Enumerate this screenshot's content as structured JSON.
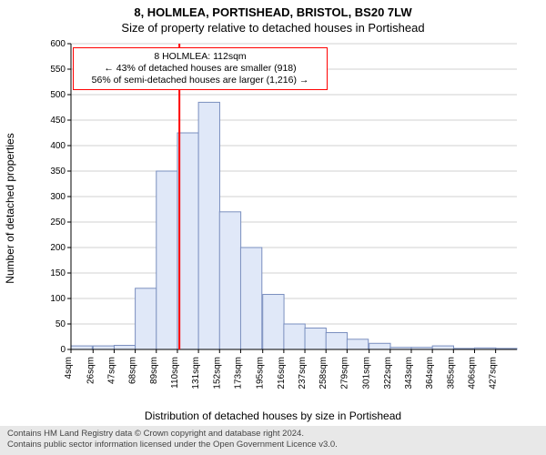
{
  "titles": {
    "super": "8, HOLMLEA, PORTISHEAD, BRISTOL, BS20 7LW",
    "sub": "Size of property relative to detached houses in Portishead",
    "xaxis": "Distribution of detached houses by size in Portishead",
    "yaxis": "Number of detached properties"
  },
  "footer": {
    "line1": "Contains HM Land Registry data © Crown copyright and database right 2024.",
    "line2": "Contains public sector information licensed under the Open Government Licence v3.0."
  },
  "info_box": {
    "line1": "8 HOLMLEA: 112sqm",
    "line2": "← 43% of detached houses are smaller (918)",
    "line3": "56% of semi-detached houses are larger (1,216) →",
    "border_color": "#ff0000",
    "marker_x_value": 112
  },
  "chart": {
    "type": "histogram",
    "ylim": [
      0,
      600
    ],
    "ytick_step": 50,
    "y_grid": true,
    "background_color": "#ffffff",
    "grid_color": "#d0d0d0",
    "axis_color": "#000000",
    "bar_fill": "#e0e8f8",
    "bar_stroke": "#7a8fbf",
    "marker_color": "#ff0000",
    "bin_width_sqm": 21.17,
    "x_labels": [
      "4sqm",
      "26sqm",
      "47sqm",
      "68sqm",
      "89sqm",
      "110sqm",
      "131sqm",
      "152sqm",
      "173sqm",
      "195sqm",
      "216sqm",
      "237sqm",
      "258sqm",
      "279sqm",
      "301sqm",
      "322sqm",
      "343sqm",
      "364sqm",
      "385sqm",
      "406sqm",
      "427sqm"
    ],
    "x_tick_positions_sqm": [
      4,
      26,
      47,
      68,
      89,
      110,
      131,
      152,
      173,
      195,
      216,
      237,
      258,
      279,
      301,
      322,
      343,
      364,
      385,
      406,
      427
    ],
    "x_min": 4,
    "x_max": 427,
    "bars": [
      {
        "x0": 4,
        "count": 7
      },
      {
        "x0": 26,
        "count": 7
      },
      {
        "x0": 47,
        "count": 8
      },
      {
        "x0": 68,
        "count": 120
      },
      {
        "x0": 89,
        "count": 350
      },
      {
        "x0": 110,
        "count": 425
      },
      {
        "x0": 131,
        "count": 485
      },
      {
        "x0": 152,
        "count": 270
      },
      {
        "x0": 173,
        "count": 200
      },
      {
        "x0": 195,
        "count": 108
      },
      {
        "x0": 216,
        "count": 50
      },
      {
        "x0": 237,
        "count": 42
      },
      {
        "x0": 258,
        "count": 33
      },
      {
        "x0": 279,
        "count": 20
      },
      {
        "x0": 301,
        "count": 12
      },
      {
        "x0": 322,
        "count": 4
      },
      {
        "x0": 343,
        "count": 4
      },
      {
        "x0": 364,
        "count": 7
      },
      {
        "x0": 385,
        "count": 2
      },
      {
        "x0": 406,
        "count": 3
      },
      {
        "x0": 427,
        "count": 2
      }
    ],
    "title_fontsize": 13,
    "axis_label_fontsize": 12,
    "tick_fontsize": 10
  }
}
